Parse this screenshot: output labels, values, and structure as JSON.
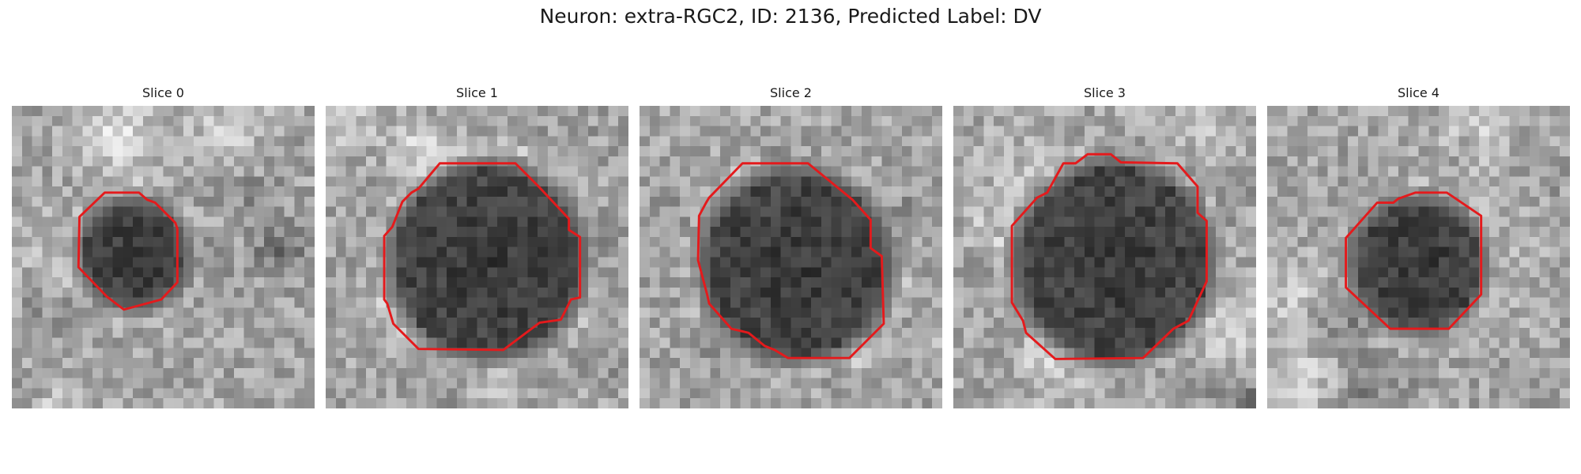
{
  "title": "Neuron: extra-RGC2, ID: 2136, Predicted Label: DV",
  "outline_color": "#e41a1c",
  "slices": [
    {
      "label": "Slice 0"
    },
    {
      "label": "Slice 1"
    },
    {
      "label": "Slice 2"
    },
    {
      "label": "Slice 3"
    },
    {
      "label": "Slice 4"
    }
  ]
}
